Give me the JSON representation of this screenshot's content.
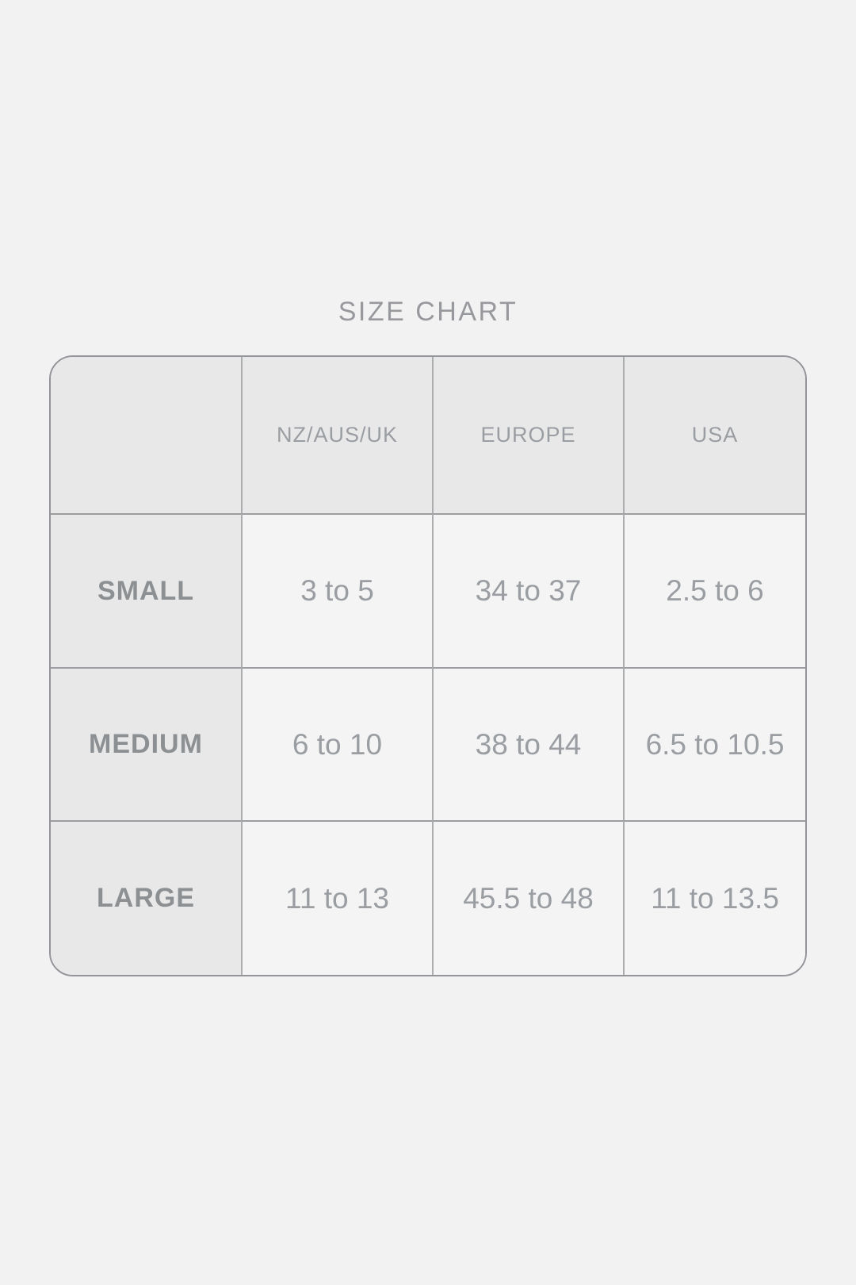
{
  "page": {
    "title": "SIZE CHART",
    "background_color": "#f2f2f3",
    "shaded_cell_color": "#e8e8e9",
    "data_cell_color": "#f4f4f5",
    "border_color": "#939598",
    "text_color": "#9a9da1"
  },
  "chart_data": {
    "type": "table",
    "title": "SIZE CHART",
    "columns": [
      "",
      "NZ/AUS/UK",
      "EUROPE",
      "USA"
    ],
    "rows": [
      {
        "label": "SMALL",
        "values": [
          "3 to 5",
          "34 to 37",
          "2.5 to 6"
        ]
      },
      {
        "label": "MEDIUM",
        "values": [
          "6 to 10",
          "38 to 44",
          "6.5 to 10.5"
        ]
      },
      {
        "label": "LARGE",
        "values": [
          "11 to 13",
          "45.5 to 48",
          "11 to 13.5"
        ]
      }
    ],
    "layout": {
      "header_row_shaded": true,
      "label_column_shaded": true,
      "grid_on": true,
      "corner_radius_px": 30
    }
  }
}
